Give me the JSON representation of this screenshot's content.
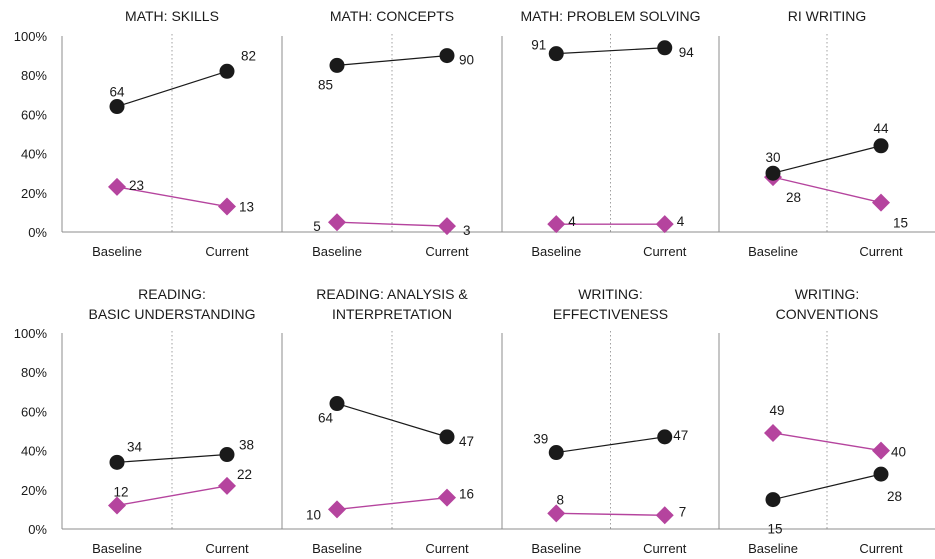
{
  "chart_data": {
    "type": "line",
    "categories": [
      "Baseline",
      "Current"
    ],
    "y_ticks": [
      "0%",
      "20%",
      "40%",
      "60%",
      "80%",
      "100%"
    ],
    "ylim": [
      0,
      100
    ],
    "colors": {
      "series_a": "#1a1a1a",
      "series_b": "#b5449e",
      "axis": "#8c8c8c",
      "divider": "#a0a0a0"
    },
    "panels": [
      {
        "title": [
          "MATH: SKILLS"
        ],
        "series_a": [
          64,
          82
        ],
        "series_b": [
          23,
          13
        ]
      },
      {
        "title": [
          "MATH: CONCEPTS"
        ],
        "series_a": [
          85,
          90
        ],
        "series_b": [
          5,
          3
        ]
      },
      {
        "title": [
          "MATH: PROBLEM SOLVING"
        ],
        "series_a": [
          91,
          94
        ],
        "series_b": [
          4,
          4
        ]
      },
      {
        "title": [
          "RI WRITING"
        ],
        "series_a": [
          30,
          44
        ],
        "series_b": [
          28,
          15
        ]
      },
      {
        "title": [
          "READING:",
          "BASIC UNDERSTANDING"
        ],
        "series_a": [
          34,
          38
        ],
        "series_b": [
          12,
          22
        ]
      },
      {
        "title": [
          "READING: ANALYSIS &",
          "INTERPRETATION"
        ],
        "series_a": [
          64,
          47
        ],
        "series_b": [
          10,
          16
        ]
      },
      {
        "title": [
          "WRITING:",
          "EFFECTIVENESS"
        ],
        "series_a": [
          39,
          47
        ],
        "series_b": [
          8,
          7
        ]
      },
      {
        "title": [
          "WRITING:",
          "CONVENTIONS"
        ],
        "series_a": [
          15,
          28
        ],
        "series_b": [
          49,
          40
        ]
      }
    ]
  }
}
